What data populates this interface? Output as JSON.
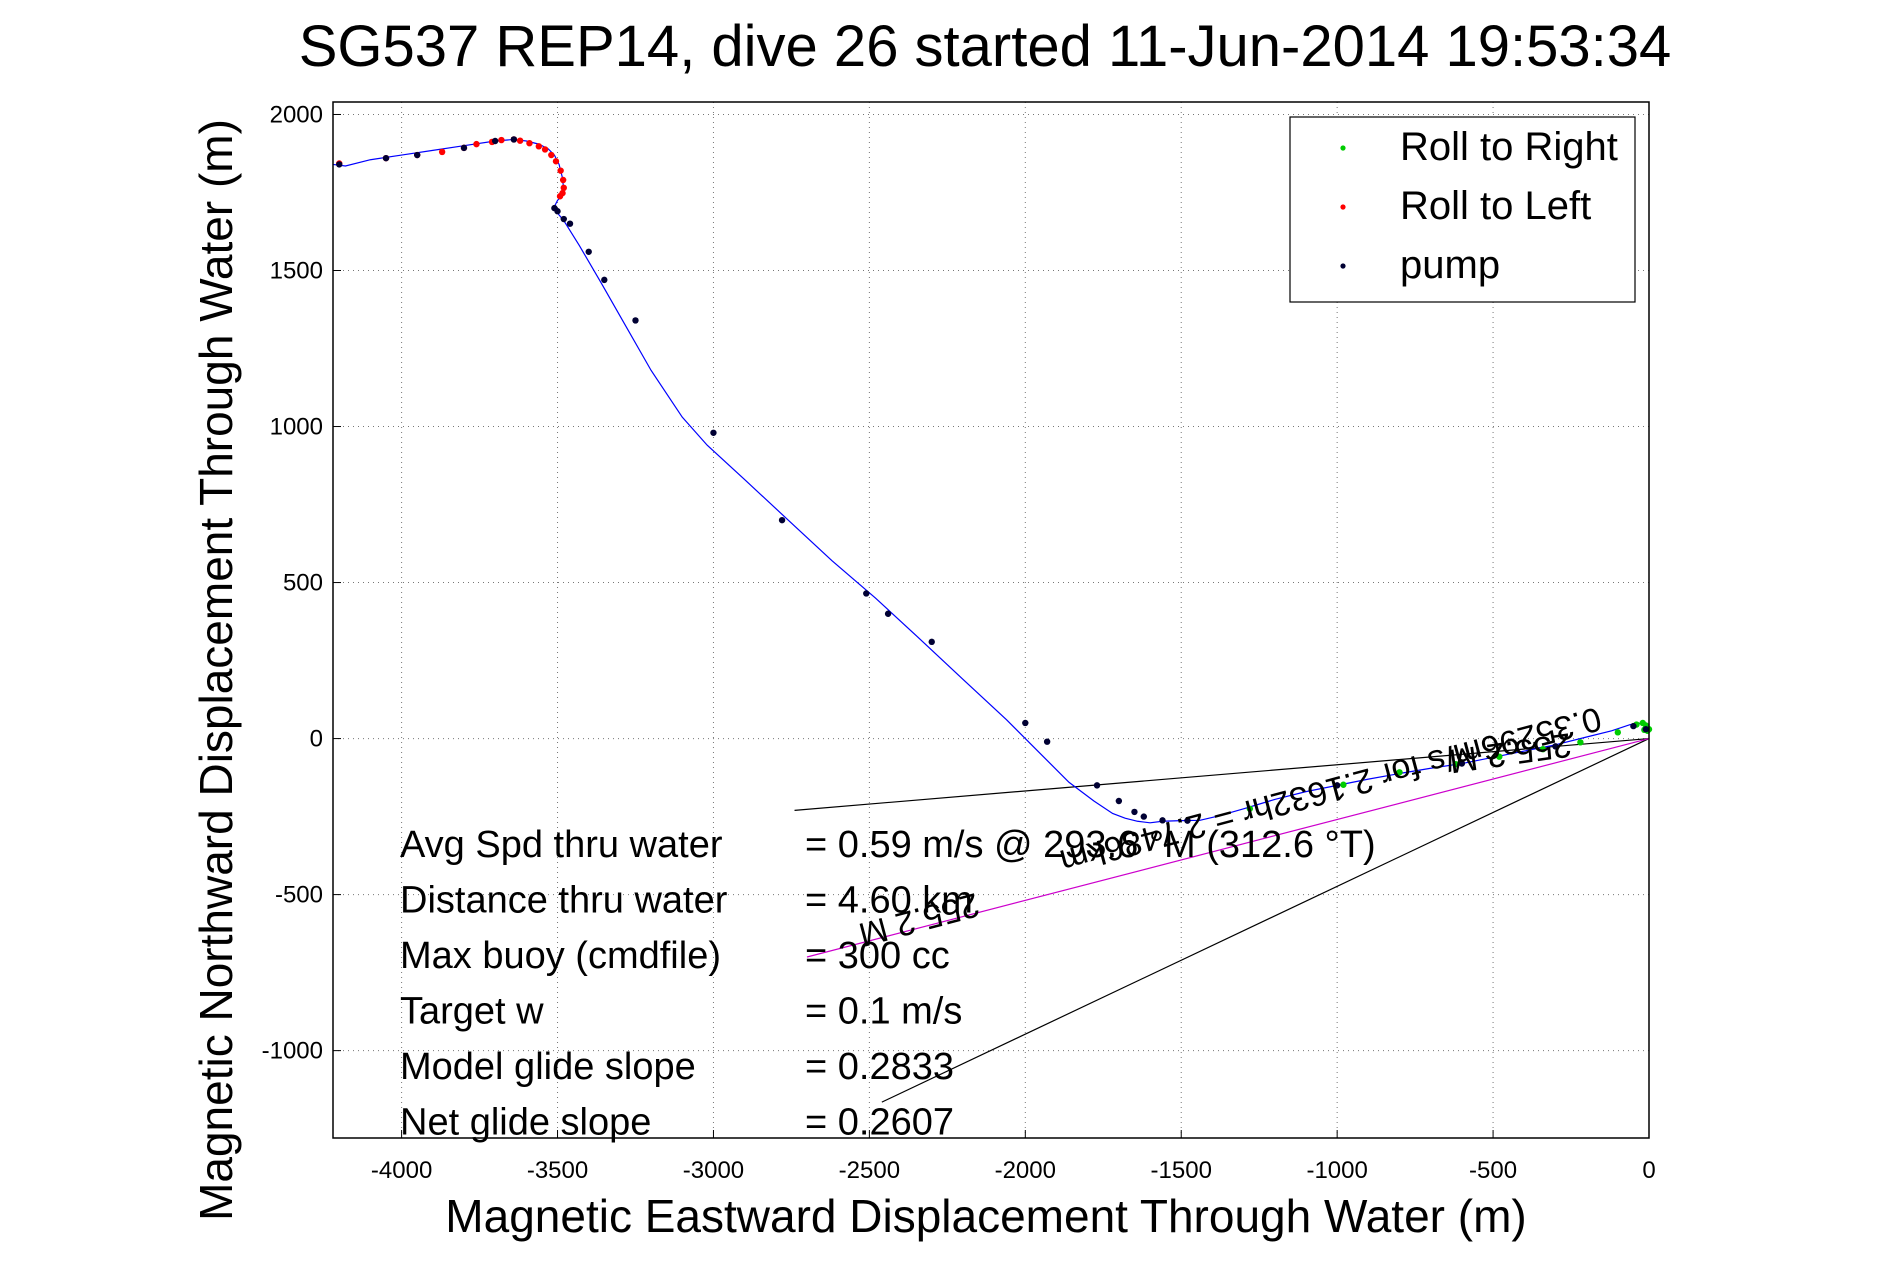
{
  "chart_data": {
    "type": "scatter",
    "title": "SG537 REP14, dive 26 started 11-Jun-2014 19:53:34",
    "xlabel": "Magnetic Eastward Displacement Through Water (m)",
    "ylabel": "Magnetic Northward Displacement Through Water (m)",
    "xlim": [
      -4220,
      0
    ],
    "ylim": [
      -1280,
      2040
    ],
    "xticks": [
      -4000,
      -3500,
      -3000,
      -2500,
      -2000,
      -1500,
      -1000,
      -500,
      0
    ],
    "yticks": [
      -1000,
      -500,
      0,
      500,
      1000,
      1500,
      2000
    ],
    "grid": true,
    "legend_position": "top-right",
    "legend": [
      {
        "label": "Roll to Right",
        "color": "#00cc00"
      },
      {
        "label": "Roll to Left",
        "color": "#ff0000"
      },
      {
        "label": "pump",
        "color": "#000033"
      }
    ],
    "track": {
      "color": "#0000ff",
      "x": [
        -4220,
        -4180,
        -4100,
        -4000,
        -3900,
        -3800,
        -3700,
        -3640,
        -3600,
        -3560,
        -3530,
        -3510,
        -3495,
        -3485,
        -3480,
        -3485,
        -3500,
        -3510,
        -3505,
        -3480,
        -3430,
        -3360,
        -3280,
        -3200,
        -3100,
        -3020,
        -2900,
        -2760,
        -2620,
        -2480,
        -2350,
        -2200,
        -2060,
        -1950,
        -1860,
        -1780,
        -1720,
        -1680,
        -1640,
        -1600,
        -1560,
        -1500,
        -1440,
        -1380,
        -1300,
        -1200,
        -1100,
        -1000,
        -900,
        -800,
        -700,
        -600,
        -500,
        -400,
        -300,
        -200,
        -120,
        -60,
        -20,
        0,
        0,
        -10,
        -20,
        0
      ],
      "y": [
        1840,
        1835,
        1855,
        1870,
        1885,
        1900,
        1915,
        1920,
        1915,
        1905,
        1890,
        1870,
        1840,
        1800,
        1760,
        1740,
        1725,
        1705,
        1690,
        1660,
        1580,
        1460,
        1320,
        1180,
        1030,
        940,
        830,
        700,
        570,
        450,
        330,
        190,
        60,
        -50,
        -140,
        -200,
        -240,
        -255,
        -265,
        -270,
        -265,
        -263,
        -262,
        -248,
        -225,
        -195,
        -170,
        -150,
        -130,
        -112,
        -95,
        -80,
        -60,
        -40,
        -20,
        5,
        25,
        45,
        50,
        45,
        30,
        25,
        30,
        20
      ]
    },
    "series": [
      {
        "name": "Roll to Right",
        "color": "#00cc00",
        "x": [
          -1280,
          -980,
          -800,
          -620,
          -480,
          -340,
          -220,
          -100,
          -40,
          -20,
          -10,
          0,
          -5,
          -15
        ],
        "y": [
          -225,
          -148,
          -108,
          -82,
          -58,
          -34,
          -12,
          20,
          45,
          50,
          42,
          30,
          25,
          28
        ]
      },
      {
        "name": "Roll to Left",
        "color": "#ff0000",
        "x": [
          -4200,
          -4050,
          -3950,
          -3870,
          -3800,
          -3760,
          -3710,
          -3680,
          -3640,
          -3620,
          -3590,
          -3560,
          -3540,
          -3520,
          -3505,
          -3490,
          -3482,
          -3480,
          -3484,
          -3492
        ],
        "y": [
          1843,
          1860,
          1870,
          1880,
          1893,
          1905,
          1912,
          1918,
          1920,
          1916,
          1908,
          1898,
          1888,
          1870,
          1850,
          1820,
          1790,
          1765,
          1748,
          1738
        ]
      },
      {
        "name": "pump",
        "color": "#000033",
        "x": [
          -4200,
          -4050,
          -3950,
          -3800,
          -3700,
          -3640,
          -3510,
          -3500,
          -3480,
          -3460,
          -3400,
          -3350,
          -3250,
          -3000,
          -2780,
          -2510,
          -2440,
          -2300,
          -2000,
          -1930,
          -1770,
          -1700,
          -1650,
          -1620,
          -1560,
          -1480,
          -1000,
          -600,
          -300,
          -50,
          -10
        ],
        "y": [
          1840,
          1860,
          1870,
          1893,
          1915,
          1920,
          1700,
          1690,
          1665,
          1650,
          1560,
          1470,
          1340,
          980,
          700,
          465,
          400,
          310,
          50,
          -10,
          -150,
          -200,
          -235,
          -250,
          -262,
          -263,
          -150,
          -80,
          -25,
          40,
          30
        ]
      }
    ],
    "reference_lines": [
      {
        "color": "#000000",
        "x": [
          -2740,
          0
        ],
        "y": [
          -230,
          0
        ]
      },
      {
        "color": "#000000",
        "x": [
          -2460,
          0
        ],
        "y": [
          -1165,
          0
        ]
      },
      {
        "color": "#cc00cc",
        "x": [
          -2700,
          0
        ],
        "y": [
          -700,
          0
        ]
      }
    ],
    "annotations": [
      {
        "text": "255.2 M",
        "x": -450,
        "y": -10,
        "angle": 172
      },
      {
        "text": "0.35296m/s for 2.1632hr = 2.7486km",
        "x": -1030,
        "y": -130,
        "angle": 165
      },
      {
        "text": "255.2 M",
        "x": -2350,
        "y": -545,
        "angle": 165
      }
    ],
    "stats": [
      {
        "label": "Avg Spd thru water",
        "value": "=  0.59 m/s @ 293.6 °M (312.6 °T)"
      },
      {
        "label": "Distance thru water",
        "value": "=  4.60 km"
      },
      {
        "label": "Max buoy (cmdfile)",
        "value": "= 300 cc"
      },
      {
        "label": "Target w",
        "value": "= 0.1 m/s"
      },
      {
        "label": "Model glide slope",
        "value": "= 0.2833"
      },
      {
        "label": "Net glide slope",
        "value": "= 0.2607"
      }
    ]
  }
}
